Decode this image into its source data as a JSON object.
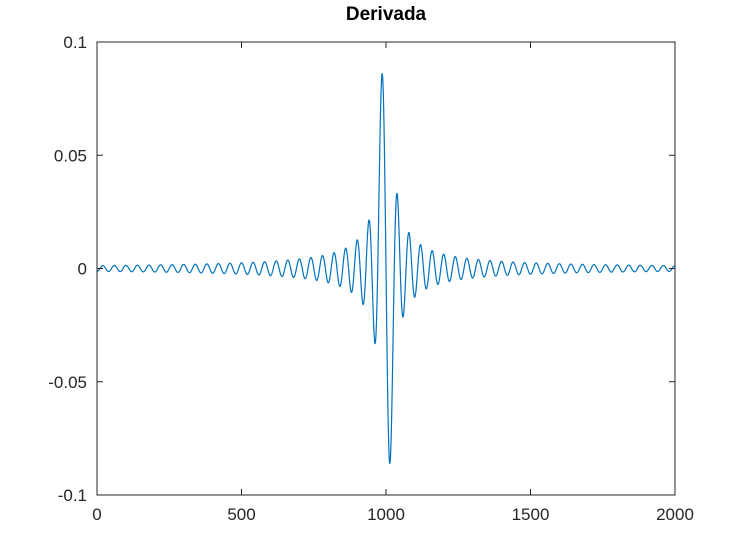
{
  "chart_data": {
    "type": "line",
    "title": "Derivada",
    "xlabel": "",
    "ylabel": "",
    "xlim": [
      0,
      2000
    ],
    "ylim": [
      -0.1,
      0.1
    ],
    "xticks": [
      0,
      500,
      1000,
      1500,
      2000
    ],
    "xtick_labels": [
      "0",
      "500",
      "1000",
      "1500",
      "2000"
    ],
    "yticks": [
      0.1,
      0.05,
      0,
      -0.05,
      -0.1
    ],
    "ytick_labels": [
      "0.1",
      "0.05",
      "0",
      "-0.05",
      "-0.1"
    ],
    "grid": false,
    "box": true,
    "series": [
      {
        "color": "#0072bd",
        "description_of_shape": "oscillating signal, derivative of a sinc-like pulse centred near x=1000",
        "x": [
          0,
          50,
          100,
          150,
          200,
          250,
          300,
          350,
          400,
          450,
          500,
          550,
          600,
          650,
          700,
          750,
          800,
          840,
          870,
          900,
          925,
          945,
          960,
          970,
          980,
          990,
          1000,
          1010,
          1020,
          1030,
          1040,
          1055,
          1075,
          1100,
          1130,
          1160,
          1200,
          1250,
          1300,
          1350,
          1400,
          1450,
          1500,
          1550,
          1600,
          1650,
          1700,
          1750,
          1800,
          1850,
          1900,
          1950,
          2000
        ],
        "y": [
          0.0005,
          -0.0008,
          0.0008,
          -0.0008,
          0.0009,
          -0.0009,
          0.001,
          -0.001,
          0.0011,
          -0.0012,
          0.0013,
          -0.0015,
          0.0017,
          -0.002,
          0.0025,
          -0.003,
          0.004,
          -0.0055,
          0.0065,
          -0.009,
          0.011,
          -0.016,
          0.021,
          -0.033,
          0.05,
          0.086,
          0.0,
          -0.086,
          0.033,
          -0.021,
          0.016,
          -0.011,
          0.009,
          -0.0065,
          0.0055,
          -0.004,
          0.003,
          -0.0025,
          0.002,
          -0.0017,
          0.0015,
          -0.0013,
          0.0012,
          -0.0011,
          0.001,
          -0.001,
          0.0009,
          -0.0009,
          0.0008,
          -0.0008,
          0.0008,
          -0.0006,
          0.0
        ]
      }
    ]
  },
  "colors": {
    "line": "#0072bd",
    "axes": "#262626",
    "background": "#ffffff"
  }
}
